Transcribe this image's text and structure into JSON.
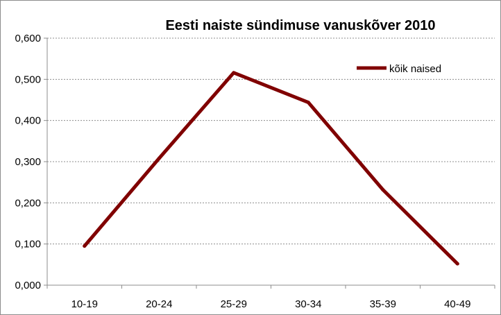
{
  "chart_data": {
    "type": "line",
    "title": "Eesti naiste sündimuse vanuskõver 2010",
    "xlabel": "",
    "ylabel": "",
    "categories": [
      "10-19",
      "20-24",
      "25-29",
      "30-34",
      "35-39",
      "40-49"
    ],
    "y_ticks": [
      "0,000",
      "0,100",
      "0,200",
      "0,300",
      "0,400",
      "0,500",
      "0,600"
    ],
    "ylim": [
      0,
      0.6
    ],
    "grid": true,
    "legend": "top-right",
    "series": [
      {
        "name": "kõik naised",
        "color": "#800000",
        "values": [
          0.095,
          0.308,
          0.516,
          0.444,
          0.232,
          0.052
        ]
      }
    ]
  }
}
